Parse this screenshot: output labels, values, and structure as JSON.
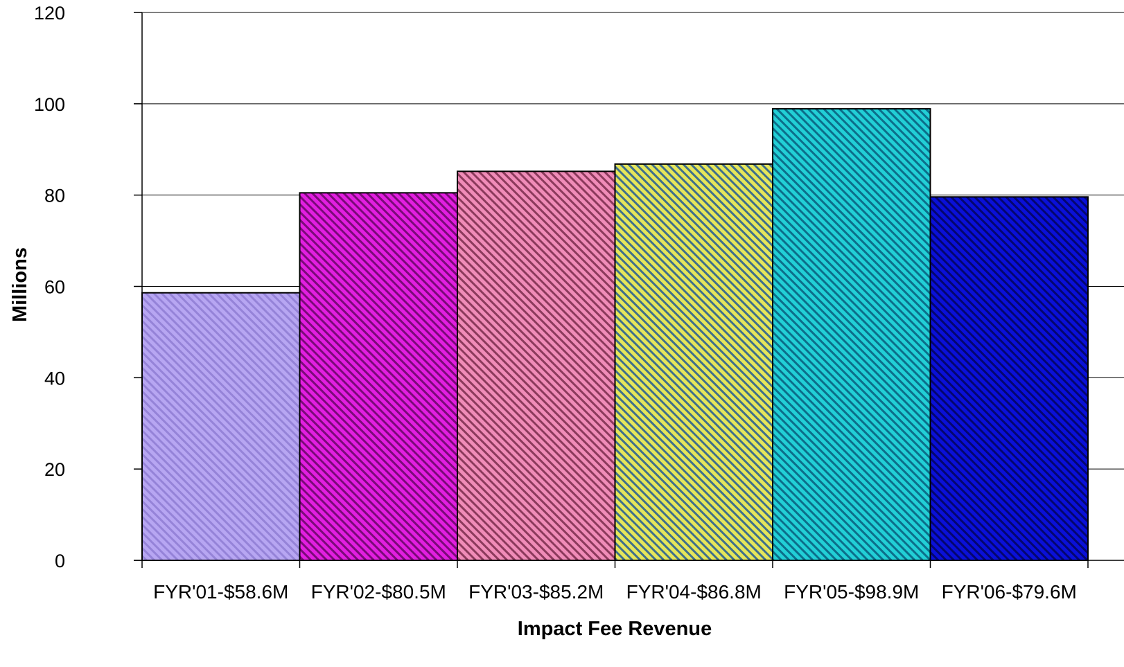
{
  "chart_data": {
    "type": "bar",
    "title": "",
    "xlabel": "Impact Fee Revenue",
    "ylabel": "Millions",
    "ylim": [
      0,
      120
    ],
    "yticks": [
      "0",
      "20",
      "40",
      "60",
      "80",
      "100",
      "120"
    ],
    "grid": true,
    "legend": "none",
    "categories": [
      "FYR'01-$58.6M",
      "FYR'02-$80.5M",
      "FYR'03-$85.2M",
      "FYR'04-$86.8M",
      "FYR'05-$98.9M",
      "FYR'06-$79.6M"
    ],
    "values": [
      58.6,
      80.5,
      85.2,
      86.8,
      98.9,
      79.6
    ],
    "colors": [
      {
        "base": "#b7a6f2",
        "stripe": "#9583d8"
      },
      {
        "base": "#e21fe0",
        "stripe": "#7a0a78"
      },
      {
        "base": "#f08cb8",
        "stripe": "#8c3a5c"
      },
      {
        "base": "#e6e65a",
        "stripe": "#3f6f8c"
      },
      {
        "base": "#22cfd6",
        "stripe": "#0c6e8a"
      },
      {
        "base": "#0a10d8",
        "stripe": "#04066e"
      }
    ]
  }
}
